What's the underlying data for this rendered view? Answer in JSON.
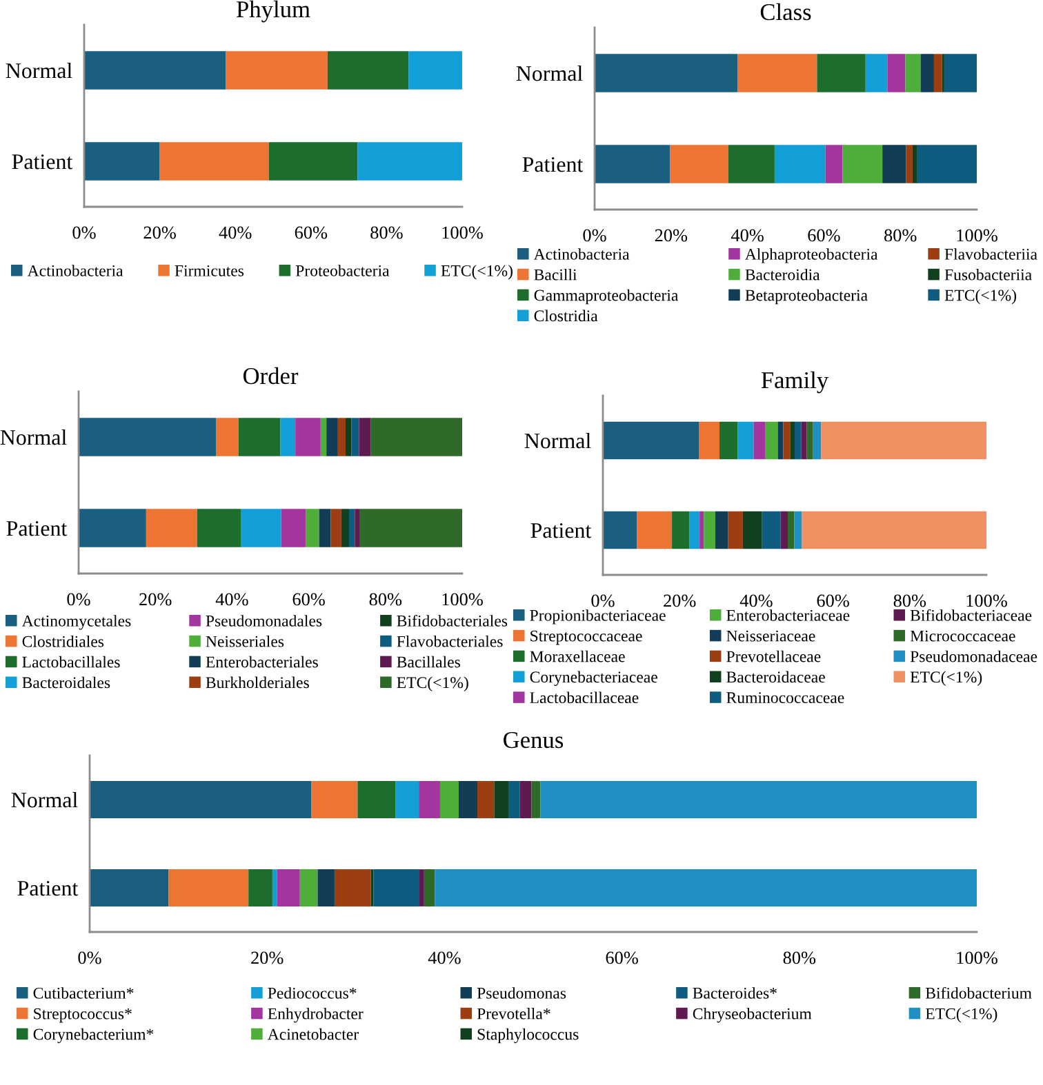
{
  "chart_data": [
    {
      "type": "bar",
      "title": "Phylum",
      "orientation": "horizontal",
      "stacked": true,
      "legend": "bottom",
      "grid": false,
      "categories": [
        "Normal",
        "Patient"
      ],
      "xlim": [
        0,
        100
      ],
      "xticks": [
        {
          "value": 0,
          "label": "0%"
        },
        {
          "value": 20,
          "label": "20%"
        },
        {
          "value": 40,
          "label": "40%"
        },
        {
          "value": 60,
          "label": "60%"
        },
        {
          "value": 80,
          "label": "80%"
        },
        {
          "value": 100,
          "label": "100%"
        }
      ],
      "series": [
        {
          "name": "Actinobacteria",
          "color": "#1a5e80",
          "values": [
            37.5,
            19.9
          ]
        },
        {
          "name": "Firmicutes",
          "color": "#ed7534",
          "values": [
            26.9,
            29.0
          ]
        },
        {
          "name": "Proteobacteria",
          "color": "#1d6e2c",
          "values": [
            21.4,
            23.4
          ]
        },
        {
          "name": "ETC(<1%)",
          "color": "#13a0d8",
          "values": [
            14.2,
            27.7
          ]
        }
      ]
    },
    {
      "type": "bar",
      "title": "Class",
      "orientation": "horizontal",
      "stacked": true,
      "legend": "bottom",
      "grid": false,
      "categories": [
        "Normal",
        "Patient"
      ],
      "xlim": [
        0,
        100
      ],
      "xticks": [
        {
          "value": 0,
          "label": "0%"
        },
        {
          "value": 20,
          "label": "20%"
        },
        {
          "value": 40,
          "label": "40%"
        },
        {
          "value": 60,
          "label": "60%"
        },
        {
          "value": 80,
          "label": "80%"
        },
        {
          "value": 100,
          "label": "100%"
        }
      ],
      "series": [
        {
          "name": "Actinobacteria",
          "color": "#1a5e80",
          "values": [
            37.4,
            19.7
          ]
        },
        {
          "name": "Bacilli",
          "color": "#ed7534",
          "values": [
            20.8,
            15.3
          ]
        },
        {
          "name": "Gammaproteobacteria",
          "color": "#1d6e2c",
          "values": [
            12.7,
            12.1
          ]
        },
        {
          "name": "Clostridia",
          "color": "#13a0d8",
          "values": [
            5.7,
            13.3
          ]
        },
        {
          "name": "Alphaproteobacteria",
          "color": "#a3359e",
          "values": [
            4.7,
            4.5
          ]
        },
        {
          "name": "Bacteroidia",
          "color": "#4fae3a",
          "values": [
            4.0,
            10.4
          ]
        },
        {
          "name": "Betaproteobacteria",
          "color": "#123d56",
          "values": [
            3.5,
            6.2
          ]
        },
        {
          "name": "Flavobacteriia",
          "color": "#9b3f12",
          "values": [
            2.1,
            1.7
          ]
        },
        {
          "name": "Fusobacteriia",
          "color": "#11401f",
          "values": [
            0.6,
            1.1
          ]
        },
        {
          "name": "ETC(<1%)",
          "color": "#0e5c80",
          "values": [
            8.5,
            15.7
          ]
        }
      ]
    },
    {
      "type": "bar",
      "title": "Order",
      "orientation": "horizontal",
      "stacked": true,
      "legend": "bottom",
      "grid": false,
      "categories": [
        "Normal",
        "Patient"
      ],
      "xlim": [
        0,
        100
      ],
      "xticks": [
        {
          "value": 0,
          "label": "0%"
        },
        {
          "value": 20,
          "label": "20%"
        },
        {
          "value": 40,
          "label": "40%"
        },
        {
          "value": 60,
          "label": "60%"
        },
        {
          "value": 80,
          "label": "80%"
        },
        {
          "value": 100,
          "label": "100%"
        }
      ],
      "series": [
        {
          "name": "Actinomycetales",
          "color": "#1a5e80",
          "values": [
            35.8,
            17.6
          ]
        },
        {
          "name": "Clostridiales",
          "color": "#ed7534",
          "values": [
            5.9,
            13.3
          ]
        },
        {
          "name": "Lactobacillales",
          "color": "#1d6e2c",
          "values": [
            10.9,
            11.5
          ]
        },
        {
          "name": "Bacteroidales",
          "color": "#13a0d8",
          "values": [
            3.9,
            10.4
          ]
        },
        {
          "name": "Pseudomonadales",
          "color": "#a3359e",
          "values": [
            6.6,
            6.4
          ]
        },
        {
          "name": "Neisseriales",
          "color": "#4fae3a",
          "values": [
            1.5,
            3.5
          ]
        },
        {
          "name": "Enterobacteriales",
          "color": "#123d56",
          "values": [
            3.0,
            3.0
          ]
        },
        {
          "name": "Burkholderiales",
          "color": "#9b3f12",
          "values": [
            2.0,
            2.8
          ]
        },
        {
          "name": "Bifidobacteriales",
          "color": "#11401f",
          "values": [
            1.5,
            2.0
          ]
        },
        {
          "name": "Flavobacteriales",
          "color": "#0e5c80",
          "values": [
            2.0,
            1.5
          ]
        },
        {
          "name": "Bacillales",
          "color": "#601a52",
          "values": [
            3.1,
            1.2
          ]
        },
        {
          "name": "ETC(<1%)",
          "color": "#2e6a28",
          "values": [
            23.8,
            26.8
          ]
        }
      ]
    },
    {
      "type": "bar",
      "title": "Family",
      "orientation": "horizontal",
      "stacked": true,
      "legend": "bottom",
      "grid": false,
      "categories": [
        "Normal",
        "Patient"
      ],
      "xlim": [
        0,
        100
      ],
      "xticks": [
        {
          "value": 0,
          "label": "0%"
        },
        {
          "value": 20,
          "label": "20%"
        },
        {
          "value": 40,
          "label": "40%"
        },
        {
          "value": 60,
          "label": "60%"
        },
        {
          "value": 80,
          "label": "80%"
        },
        {
          "value": 100,
          "label": "100%"
        }
      ],
      "series": [
        {
          "name": "Propionibacteriaceae",
          "color": "#1a5e80",
          "values": [
            25.0,
            8.9
          ]
        },
        {
          "name": "Streptococcaceae",
          "color": "#ed7534",
          "values": [
            5.4,
            9.1
          ]
        },
        {
          "name": "Moraxellaceae",
          "color": "#1d6e2c",
          "values": [
            4.7,
            4.5
          ]
        },
        {
          "name": "Corynebacteriaceae",
          "color": "#13a0d8",
          "values": [
            4.2,
            2.7
          ]
        },
        {
          "name": "Lactobacillaceae",
          "color": "#a3359e",
          "values": [
            3.1,
            1.1
          ]
        },
        {
          "name": "Enterobacteriaceae",
          "color": "#4fae3a",
          "values": [
            3.2,
            3.0
          ]
        },
        {
          "name": "Neisseriaceae",
          "color": "#123d56",
          "values": [
            1.4,
            3.3
          ]
        },
        {
          "name": "Prevotellaceae",
          "color": "#9b3f12",
          "values": [
            1.8,
            3.9
          ]
        },
        {
          "name": "Bacteroidaceae",
          "color": "#11401f",
          "values": [
            1.2,
            5.0
          ]
        },
        {
          "name": "Ruminococcaceae",
          "color": "#0e5c80",
          "values": [
            1.7,
            4.8
          ]
        },
        {
          "name": "Bifidobacteriaceae",
          "color": "#601a52",
          "values": [
            1.4,
            1.9
          ]
        },
        {
          "name": "Micrococcaceae",
          "color": "#2e6a28",
          "values": [
            1.7,
            1.7
          ]
        },
        {
          "name": "Pseudomonadaceae",
          "color": "#2090c4",
          "values": [
            2.1,
            2.0
          ]
        },
        {
          "name": "ETC(<1%)",
          "color": "#ee9060",
          "values": [
            43.1,
            48.1
          ]
        }
      ]
    },
    {
      "type": "bar",
      "title": "Genus",
      "orientation": "horizontal",
      "stacked": true,
      "legend": "bottom",
      "grid": false,
      "categories": [
        "Normal",
        "Patient"
      ],
      "xlim": [
        0,
        100
      ],
      "xticks": [
        {
          "value": 0,
          "label": "0%"
        },
        {
          "value": 20,
          "label": "20%"
        },
        {
          "value": 40,
          "label": "40%"
        },
        {
          "value": 60,
          "label": "60%"
        },
        {
          "value": 80,
          "label": "80%"
        },
        {
          "value": 100,
          "label": "100%"
        }
      ],
      "series": [
        {
          "name": "Cutibacterium*",
          "color": "#1a5e80",
          "values": [
            25.0,
            8.9
          ]
        },
        {
          "name": "Streptococcus*",
          "color": "#ed7534",
          "values": [
            5.2,
            9.0
          ]
        },
        {
          "name": "Corynebacterium*",
          "color": "#1d6e2c",
          "values": [
            4.3,
            2.7
          ]
        },
        {
          "name": "Pediococcus*",
          "color": "#13a0d8",
          "values": [
            2.6,
            0.5
          ]
        },
        {
          "name": "Enhydrobacter",
          "color": "#a3359e",
          "values": [
            2.4,
            2.6
          ]
        },
        {
          "name": "Acinetobacter",
          "color": "#4fae3a",
          "values": [
            2.1,
            2.0
          ]
        },
        {
          "name": "Pseudomonas",
          "color": "#123d56",
          "values": [
            2.1,
            1.9
          ]
        },
        {
          "name": "Prevotella*",
          "color": "#9b3f12",
          "values": [
            1.9,
            4.1
          ]
        },
        {
          "name": "Staphylococcus",
          "color": "#11401f",
          "values": [
            1.6,
            0.3
          ]
        },
        {
          "name": "Bacteroides*",
          "color": "#0e5c80",
          "values": [
            1.3,
            5.1
          ]
        },
        {
          "name": "Chryseobacterium",
          "color": "#601a52",
          "values": [
            1.3,
            0.6
          ]
        },
        {
          "name": "Bifidobacterium",
          "color": "#2e6a28",
          "values": [
            1.0,
            1.2
          ]
        },
        {
          "name": "ETC(<1%)",
          "color": "#2090c4",
          "values": [
            49.2,
            61.1
          ]
        }
      ]
    }
  ]
}
